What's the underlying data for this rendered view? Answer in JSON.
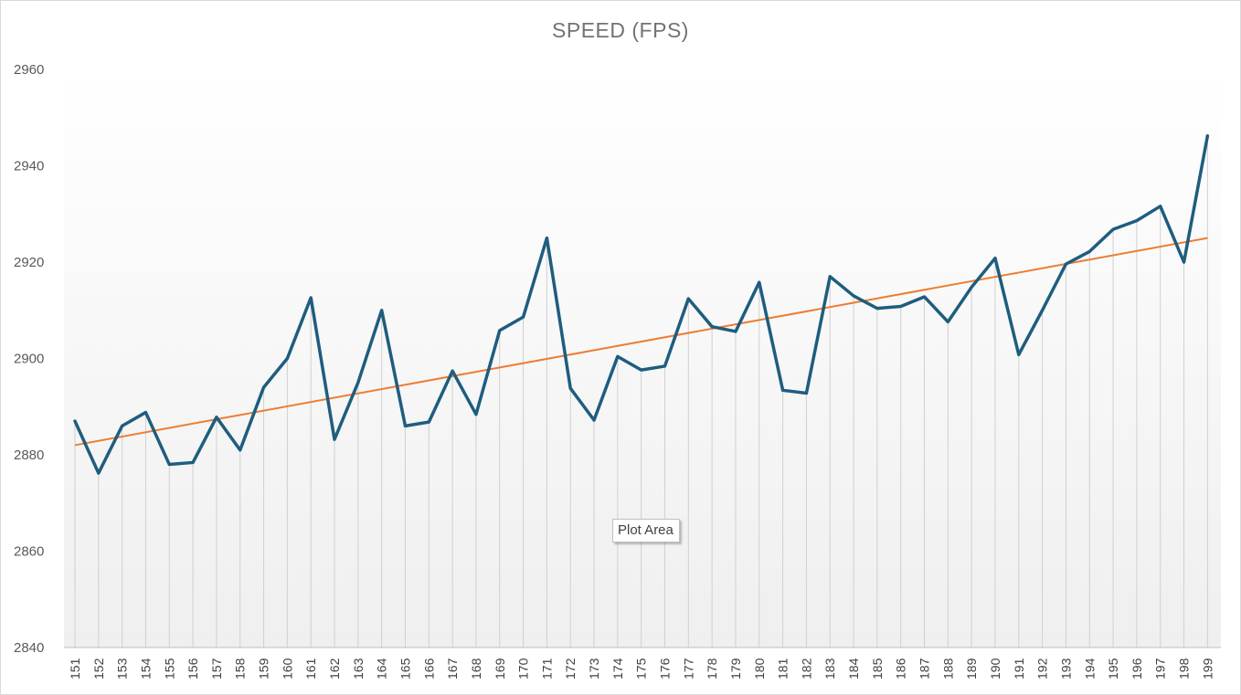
{
  "chart_data": {
    "type": "line",
    "title": "SPEED (FPS)",
    "xlabel": "",
    "ylabel": "",
    "ylim": [
      2840,
      2960
    ],
    "yticks": [
      2840,
      2860,
      2880,
      2900,
      2920,
      2940,
      2960
    ],
    "categories": [
      "151",
      "152",
      "153",
      "154",
      "155",
      "156",
      "157",
      "158",
      "159",
      "160",
      "161",
      "162",
      "163",
      "164",
      "165",
      "166",
      "167",
      "168",
      "169",
      "170",
      "171",
      "172",
      "173",
      "174",
      "175",
      "176",
      "177",
      "178",
      "179",
      "180",
      "181",
      "182",
      "183",
      "184",
      "185",
      "186",
      "187",
      "188",
      "189",
      "190",
      "191",
      "192",
      "193",
      "194",
      "195",
      "196",
      "197",
      "198",
      "199"
    ],
    "series": [
      {
        "values": [
          2887.0,
          2876.2,
          2886.0,
          2888.8,
          2878.0,
          2878.4,
          2887.8,
          2881.0,
          2894.0,
          2900.0,
          2912.6,
          2883.2,
          2895.0,
          2910.0,
          2886.0,
          2886.8,
          2897.4,
          2888.4,
          2905.8,
          2908.6,
          2925.0,
          2893.8,
          2887.2,
          2900.4,
          2897.6,
          2898.4,
          2912.4,
          2906.6,
          2905.6,
          2915.8,
          2893.4,
          2892.8,
          2917.0,
          2913.0,
          2910.4,
          2910.8,
          2912.8,
          2907.6,
          2914.8,
          2920.8,
          2900.8,
          2910.0,
          2919.6,
          2922.2,
          2926.8,
          2928.6,
          2931.6,
          2920.0,
          2946.2
        ],
        "color": "#1e5d7e"
      }
    ],
    "trendline": {
      "type": "linear",
      "start": 2882.0,
      "end": 2925.0,
      "color": "#ed7d31"
    },
    "drop_lines": true,
    "grid": false,
    "legend": "none"
  },
  "tooltip": {
    "text": "Plot Area"
  }
}
